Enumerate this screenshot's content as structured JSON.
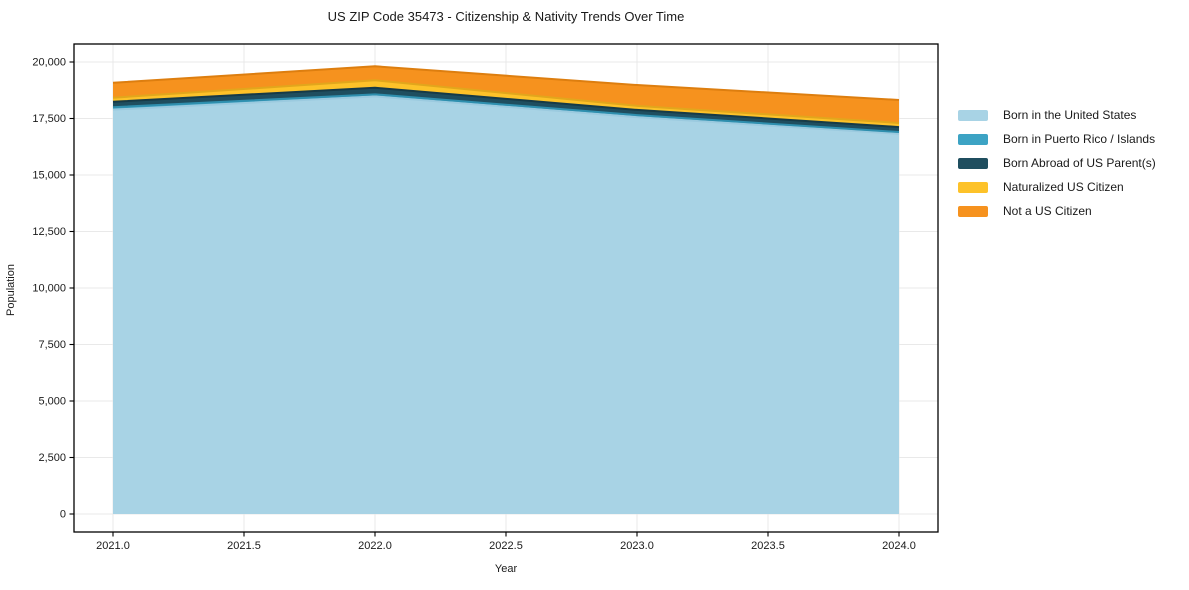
{
  "chart_data": {
    "type": "area",
    "stacked": true,
    "title": "US ZIP Code 35473 - Citizenship & Nativity Trends Over Time",
    "xlabel": "Year",
    "ylabel": "Population",
    "x": [
      2021,
      2022,
      2023,
      2024
    ],
    "series": [
      {
        "name": "Born in the United States",
        "color": "#A8D3E5",
        "edge": "#9BCADF",
        "values": [
          17890,
          18480,
          17560,
          16820
        ]
      },
      {
        "name": "Born in Puerto Rico / Islands",
        "color": "#3CA3C4",
        "edge": "#2F8FAE",
        "values": [
          110,
          90,
          90,
          80
        ]
      },
      {
        "name": "Born Abroad of US Parent(s)",
        "color": "#1F4E5F",
        "edge": "#163A47",
        "values": [
          240,
          290,
          230,
          220
        ]
      },
      {
        "name": "Naturalized US Citizen",
        "color": "#FDC229",
        "edge": "#E2A61C",
        "values": [
          180,
          330,
          180,
          180
        ]
      },
      {
        "name": "Not a US Citizen",
        "color": "#F6921E",
        "edge": "#DD7E0F",
        "values": [
          660,
          620,
          920,
          1020
        ]
      }
    ],
    "totals": [
      19080,
      19810,
      18980,
      18320
    ],
    "x_ticks": [
      2021.0,
      2021.5,
      2022.0,
      2022.5,
      2023.0,
      2023.5,
      2024.0
    ],
    "x_tick_labels": [
      "2021.0",
      "2021.5",
      "2022.0",
      "2022.5",
      "2023.0",
      "2023.5",
      "2024.0"
    ],
    "y_ticks": [
      0,
      2500,
      5000,
      7500,
      10000,
      12500,
      15000,
      17500,
      20000
    ],
    "y_tick_labels": [
      "0",
      "2,500",
      "5,000",
      "7,500",
      "10,000",
      "12,500",
      "15,000",
      "17,500",
      "20,000"
    ],
    "ylim": [
      0,
      20000
    ],
    "xlim": [
      2021,
      2024
    ],
    "grid": true,
    "legend_position": "right-outside",
    "colors": {
      "grid": "#e9e9e9",
      "spine": "#000000",
      "tick_label": "#1a1a1a",
      "background": "#ffffff"
    }
  }
}
